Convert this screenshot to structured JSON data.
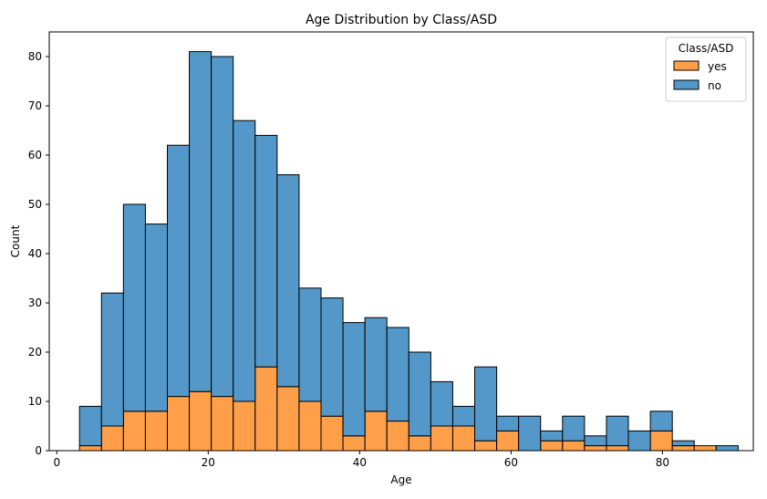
{
  "chart_data": {
    "type": "bar",
    "stacked": true,
    "title": "Age Distribution by Class/ASD",
    "xlabel": "Age",
    "ylabel": "Count",
    "xlim": [
      -1,
      92
    ],
    "ylim": [
      0,
      85
    ],
    "xticks": [
      0,
      20,
      40,
      60,
      80
    ],
    "yticks": [
      0,
      10,
      20,
      30,
      40,
      50,
      60,
      70,
      80
    ],
    "bin_edges": [
      3.0,
      5.9,
      8.8,
      11.7,
      14.6,
      17.5,
      20.4,
      23.3,
      26.2,
      29.1,
      32.0,
      34.9,
      37.8,
      40.7,
      43.6,
      46.5,
      49.4,
      52.3,
      55.2,
      58.1,
      61.0,
      63.9,
      66.8,
      69.7,
      72.6,
      75.5,
      78.4,
      81.3,
      84.2,
      87.1,
      90.0
    ],
    "series": [
      {
        "name": "yes",
        "color": "#ff9f4a",
        "values": [
          1,
          5,
          8,
          8,
          11,
          12,
          11,
          10,
          17,
          13,
          10,
          7,
          3,
          8,
          6,
          3,
          5,
          5,
          2,
          4,
          0,
          2,
          2,
          1,
          1,
          0,
          4,
          1,
          1,
          0
        ]
      },
      {
        "name": "no",
        "color": "#5398c9",
        "values": [
          8,
          27,
          42,
          38,
          51,
          69,
          69,
          57,
          47,
          43,
          23,
          24,
          23,
          19,
          19,
          17,
          9,
          4,
          15,
          3,
          7,
          2,
          5,
          2,
          6,
          4,
          4,
          1,
          0,
          1
        ]
      }
    ],
    "legend": {
      "title": "Class/ASD",
      "position": "top-right",
      "entries": [
        "yes",
        "no"
      ]
    }
  }
}
